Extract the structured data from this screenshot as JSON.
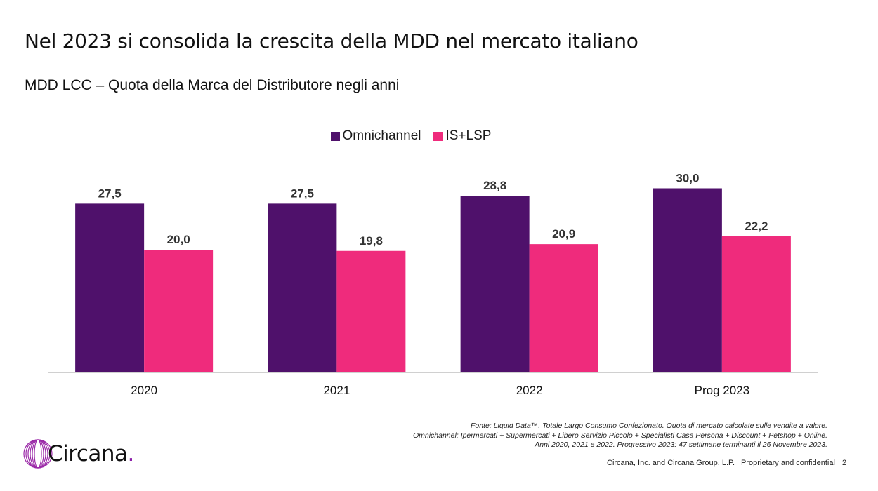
{
  "slide": {
    "title": "Nel 2023 si consolida la crescita della MDD nel mercato italiano",
    "subtitle": "MDD LCC – Quota della Marca del Distributore negli anni"
  },
  "chart_data": {
    "type": "bar",
    "categories": [
      "2020",
      "2021",
      "2022",
      "Prog 2023"
    ],
    "series": [
      {
        "name": "Omnichannel",
        "color": "#4f116b",
        "values": [
          27.5,
          27.5,
          28.8,
          30.0
        ],
        "labels": [
          "27,5",
          "27,5",
          "28,8",
          "30,0"
        ]
      },
      {
        "name": "IS+LSP",
        "color": "#ef2b7c",
        "values": [
          20.0,
          19.8,
          20.9,
          22.2
        ],
        "labels": [
          "20,0",
          "19,8",
          "20,9",
          "22,2"
        ]
      }
    ],
    "ylim": [
      0,
      30
    ],
    "grid": false,
    "legend": "top-center"
  },
  "footnote": {
    "line1": "Fonte: Liquid Data™. Totale Largo Consumo Confezionato. Quota di mercato calcolate sulle vendite a valore.",
    "line2": "Omnichannel: Ipermercati + Supermercati + Libero Servizio Piccolo + Specialisti Casa Persona + Discount + Petshop + Online.",
    "line3": "Anni 2020, 2021 e 2022. Progressivo 2023: 47 settimane terminanti il 26 Novembre 2023."
  },
  "footer": {
    "logo_text": "Circana",
    "logo_dot": ".",
    "confidential": "Circana, Inc. and Circana Group, L.P. |  Proprietary and confidential",
    "page_number": "2"
  },
  "colors": {
    "brand_purple": "#8b1fa9",
    "omnichannel": "#4f116b",
    "is_lsp": "#ef2b7c"
  }
}
